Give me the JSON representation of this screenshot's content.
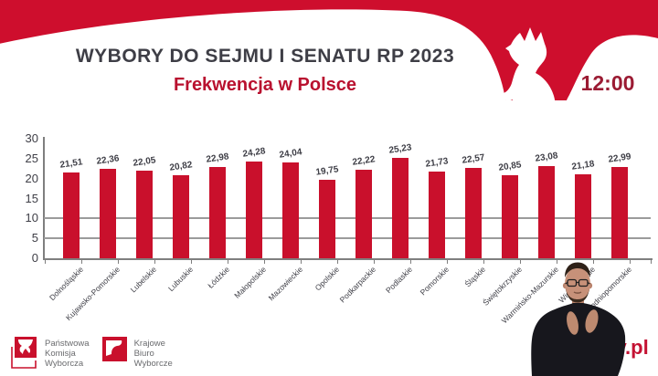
{
  "header": {
    "title": "WYBORY DO SEJMU I SENATU RP 2023",
    "subtitle": "Frekwencja w Polsce",
    "clock": "12:00"
  },
  "chart_data": {
    "type": "bar",
    "title": "Frekwencja w Polsce",
    "categories": [
      "Dolnośląskie",
      "Kujawsko-Pomorskie",
      "Lubelskie",
      "Lubuskie",
      "Łódzkie",
      "Małopolskie",
      "Mazowieckie",
      "Opolskie",
      "Podkarpackie",
      "Podlaskie",
      "Pomorskie",
      "Śląskie",
      "Świętokrzyskie",
      "Warmińsko-Mazurskie",
      "Wielkopolskie",
      "Zachodniopomorskie"
    ],
    "values": [
      21.51,
      22.36,
      22.05,
      20.82,
      22.98,
      24.28,
      24.04,
      19.75,
      22.22,
      25.23,
      21.73,
      22.57,
      20.85,
      23.08,
      21.18,
      22.99
    ],
    "value_labels": [
      "21,51",
      "22,36",
      "22,05",
      "20,82",
      "22,98",
      "24,28",
      "24,04",
      "19,75",
      "22,22",
      "25,23",
      "21,73",
      "22,57",
      "20,85",
      "23,08",
      "21,18",
      "22,99"
    ],
    "xlabel": "",
    "ylabel": "",
    "ylim": [
      0,
      30
    ],
    "yticks": [
      0,
      5,
      10,
      15,
      20,
      25,
      30
    ],
    "gridlines_at": [
      5,
      10
    ],
    "bar_color": "#c9102c",
    "legend": "none",
    "unit": "%"
  },
  "footer": {
    "pkw": {
      "name": "Państwowa Komisja Wyborcza",
      "lines": [
        "Państwowa",
        "Komisja",
        "Wyborcza"
      ]
    },
    "kbw": {
      "name": "Krajowe Biuro Wyborcze",
      "lines": [
        "Krajowe",
        "Biuro",
        "Wyborcze"
      ]
    },
    "website_fragment": "ov.pl"
  },
  "icons": {
    "eagle": "polish-eagle-icon",
    "pkw_logo": "pkw-eagle-logo-icon",
    "kbw_logo": "kbw-flag-logo-icon",
    "interpreter": "sign-language-interpreter"
  },
  "colors": {
    "header_red": "#ce0e2d",
    "bar_red": "#c9102c",
    "title_gray": "#3e3e46",
    "subtitle_red": "#b9112f",
    "clock_red": "#9b1b33",
    "grid_gray": "#9b9b9b",
    "axis_gray": "#7f7f7f",
    "logo_text_gray": "#6a6b6e",
    "url_red": "#c41233"
  }
}
